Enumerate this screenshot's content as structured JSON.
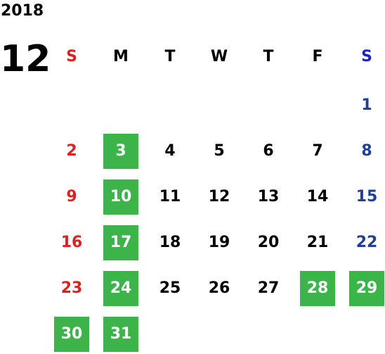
{
  "calendar": {
    "year": "2018",
    "month": "12",
    "weekdays": [
      "S",
      "M",
      "T",
      "W",
      "T",
      "F",
      "S"
    ],
    "highlight_color": "#3cb44a",
    "sunday_color": "#e02020",
    "saturday_color": "#1f3f9a",
    "weeks": [
      [
        "",
        "",
        "",
        "",
        "",
        "",
        "1"
      ],
      [
        "2",
        "3",
        "4",
        "5",
        "6",
        "7",
        "8"
      ],
      [
        "9",
        "10",
        "11",
        "12",
        "13",
        "14",
        "15"
      ],
      [
        "16",
        "17",
        "18",
        "19",
        "20",
        "21",
        "22"
      ],
      [
        "23",
        "24",
        "25",
        "26",
        "27",
        "28",
        "29"
      ],
      [
        "30",
        "31",
        "",
        "",
        "",
        "",
        ""
      ]
    ],
    "highlighted_days": [
      "3",
      "10",
      "17",
      "24",
      "28",
      "29",
      "30",
      "31"
    ]
  }
}
